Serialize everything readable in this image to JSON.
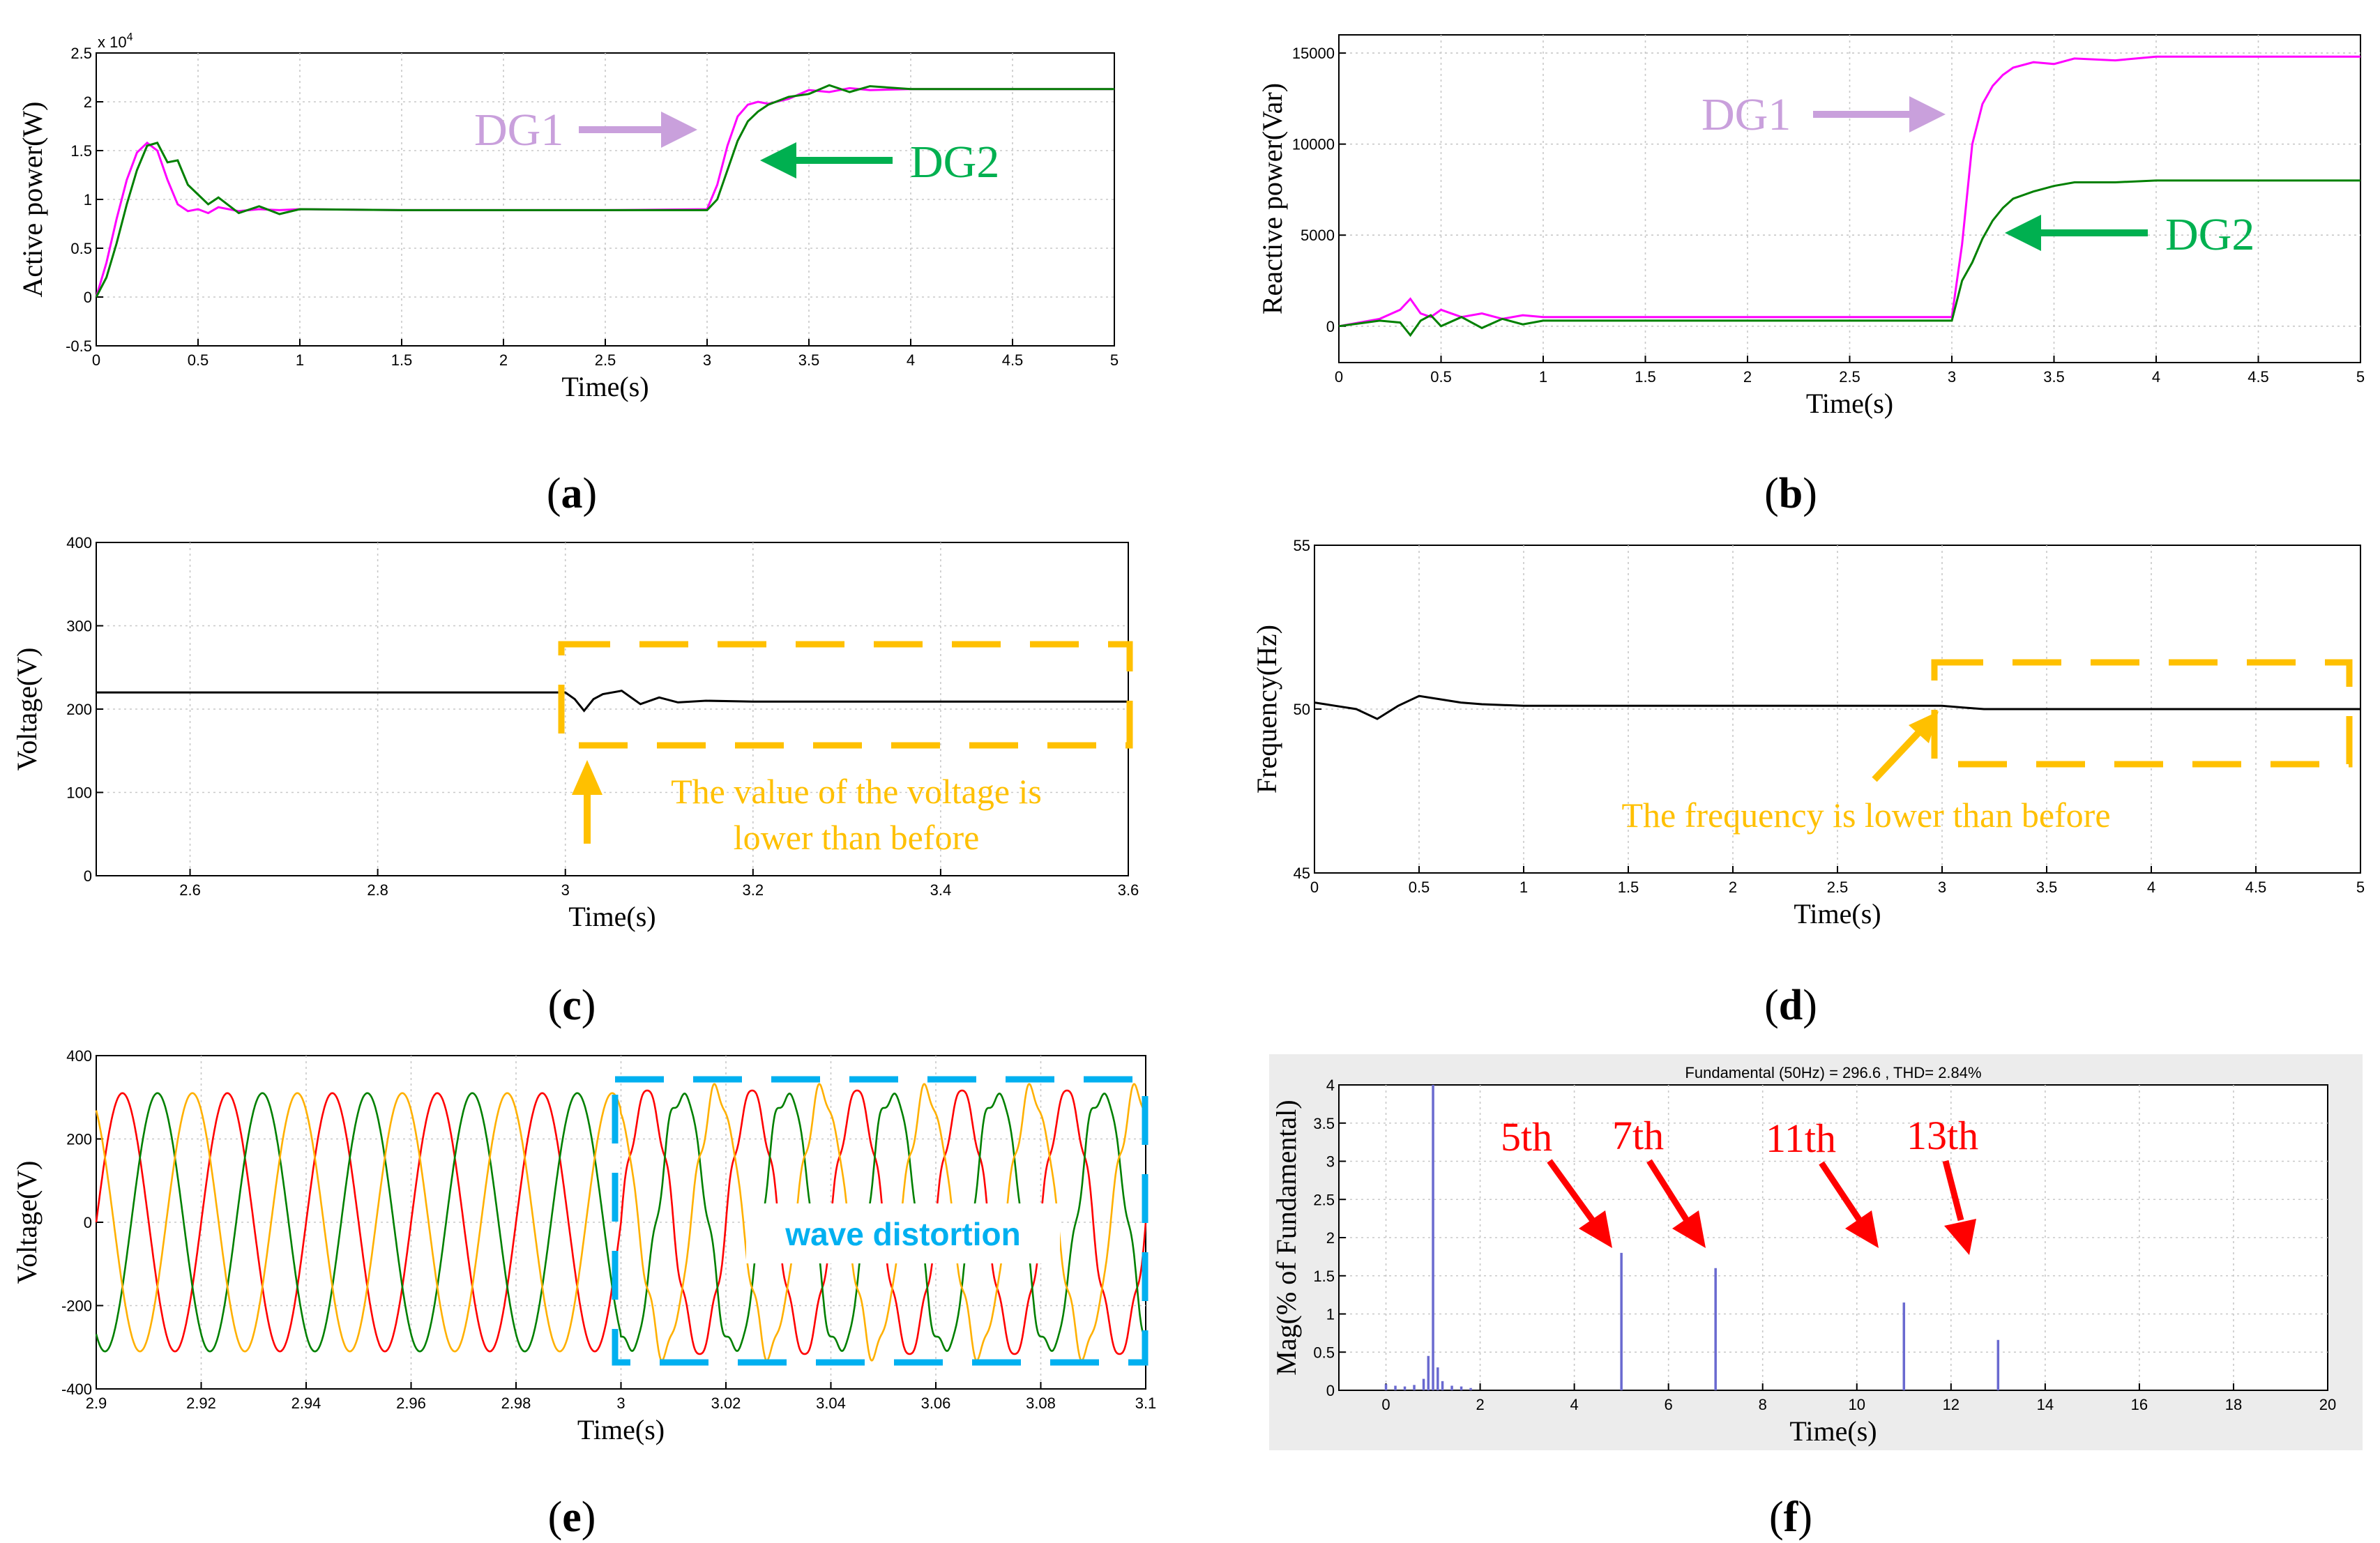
{
  "colors": {
    "dg1": "#ff00ff",
    "dg2": "#008000",
    "dg1_annotation": "#c9a0dc",
    "dg2_annotation": "#00b050",
    "highlight": "#ffc000",
    "distortion": "#00b0f0",
    "harmonic_arrow": "#ff0000",
    "phase_a": "#ff0000",
    "phase_b": "#008000",
    "phase_c": "#ffb000",
    "fft_bar": "#6a6ad0",
    "panel_f_bg": "#ececec"
  },
  "chart_data": [
    {
      "id": "a",
      "type": "line",
      "caption": "a",
      "xlabel": "Time(s)",
      "ylabel": "Active power(W)",
      "exponent_label": "x 10",
      "exponent_power": "4",
      "xlim": [
        0,
        5
      ],
      "ylim": [
        -0.5,
        2.5
      ],
      "xticks": [
        "0",
        "0.5",
        "1",
        "1.5",
        "2",
        "2.5",
        "3",
        "3.5",
        "4",
        "4.5",
        "5"
      ],
      "yticks": [
        "-0.5",
        "0",
        "0.5",
        "1",
        "1.5",
        "2",
        "2.5"
      ],
      "series": [
        {
          "name": "DG1",
          "color": "#ff00ff",
          "x": [
            0,
            0.05,
            0.1,
            0.15,
            0.2,
            0.25,
            0.3,
            0.35,
            0.4,
            0.45,
            0.5,
            0.55,
            0.6,
            0.7,
            0.8,
            0.9,
            1.0,
            1.5,
            2.0,
            2.5,
            3.0,
            3.05,
            3.1,
            3.15,
            3.2,
            3.25,
            3.3,
            3.4,
            3.5,
            3.6,
            3.7,
            3.8,
            4.0,
            4.5,
            5.0
          ],
          "values": [
            0,
            0.35,
            0.8,
            1.2,
            1.48,
            1.58,
            1.5,
            1.2,
            0.95,
            0.88,
            0.9,
            0.86,
            0.92,
            0.88,
            0.9,
            0.89,
            0.9,
            0.89,
            0.89,
            0.89,
            0.9,
            1.15,
            1.55,
            1.85,
            1.97,
            2.0,
            1.98,
            2.03,
            2.12,
            2.1,
            2.14,
            2.12,
            2.13,
            2.13,
            2.13
          ]
        },
        {
          "name": "DG2",
          "color": "#008000",
          "x": [
            0,
            0.05,
            0.1,
            0.15,
            0.2,
            0.25,
            0.3,
            0.35,
            0.4,
            0.45,
            0.5,
            0.55,
            0.6,
            0.7,
            0.8,
            0.9,
            1.0,
            1.5,
            2.0,
            2.5,
            3.0,
            3.05,
            3.1,
            3.15,
            3.2,
            3.25,
            3.3,
            3.4,
            3.5,
            3.6,
            3.7,
            3.8,
            4.0,
            4.5,
            5.0
          ],
          "values": [
            0,
            0.2,
            0.55,
            0.95,
            1.3,
            1.55,
            1.58,
            1.38,
            1.4,
            1.15,
            1.05,
            0.95,
            1.02,
            0.86,
            0.93,
            0.85,
            0.9,
            0.89,
            0.89,
            0.89,
            0.89,
            1.0,
            1.3,
            1.6,
            1.8,
            1.9,
            1.97,
            2.05,
            2.08,
            2.17,
            2.1,
            2.16,
            2.13,
            2.13,
            2.13
          ]
        }
      ],
      "annotations": {
        "dg1": "DG1",
        "dg2": "DG2"
      }
    },
    {
      "id": "b",
      "type": "line",
      "caption": "b",
      "xlabel": "Time(s)",
      "ylabel": "Reactive power(Var)",
      "xlim": [
        0,
        5
      ],
      "ylim": [
        -2000,
        16000
      ],
      "xticks": [
        "0",
        "0.5",
        "1",
        "1.5",
        "2",
        "2.5",
        "3",
        "3.5",
        "4",
        "4.5",
        "5"
      ],
      "yticks": [
        "0",
        "5000",
        "10000",
        "15000"
      ],
      "ytick_values": [
        0,
        5000,
        10000,
        15000
      ],
      "series": [
        {
          "name": "DG1",
          "color": "#ff00ff",
          "x": [
            0,
            0.1,
            0.2,
            0.3,
            0.35,
            0.4,
            0.45,
            0.5,
            0.6,
            0.7,
            0.8,
            0.9,
            1.0,
            1.2,
            1.5,
            2.0,
            2.5,
            3.0,
            3.05,
            3.1,
            3.15,
            3.2,
            3.25,
            3.3,
            3.4,
            3.5,
            3.6,
            3.8,
            4.0,
            4.5,
            5.0
          ],
          "values": [
            0,
            200,
            400,
            900,
            1500,
            700,
            500,
            900,
            500,
            700,
            400,
            600,
            500,
            500,
            500,
            500,
            500,
            500,
            4500,
            10000,
            12200,
            13200,
            13800,
            14200,
            14500,
            14400,
            14700,
            14600,
            14800,
            14800,
            14800
          ]
        },
        {
          "name": "DG2",
          "color": "#008000",
          "x": [
            0,
            0.1,
            0.2,
            0.3,
            0.35,
            0.4,
            0.45,
            0.5,
            0.6,
            0.7,
            0.8,
            0.9,
            1.0,
            1.2,
            1.5,
            2.0,
            2.5,
            3.0,
            3.05,
            3.1,
            3.15,
            3.2,
            3.25,
            3.3,
            3.4,
            3.5,
            3.6,
            3.8,
            4.0,
            4.5,
            5.0
          ],
          "values": [
            0,
            150,
            300,
            200,
            -500,
            300,
            600,
            0,
            500,
            -100,
            400,
            100,
            300,
            300,
            300,
            300,
            300,
            300,
            2500,
            3500,
            4800,
            5800,
            6500,
            7000,
            7400,
            7700,
            7900,
            7900,
            8000,
            8000,
            8000
          ]
        }
      ],
      "annotations": {
        "dg1": "DG1",
        "dg2": "DG2"
      }
    },
    {
      "id": "c",
      "type": "line",
      "caption": "c",
      "xlabel": "Time(s)",
      "ylabel": "Voltage(V)",
      "xlim": [
        2.5,
        3.6
      ],
      "ylim": [
        0,
        400
      ],
      "xticks": [
        "2.6",
        "2.8",
        "3",
        "3.2",
        "3.4",
        "3.6"
      ],
      "xtick_values": [
        2.6,
        2.8,
        3.0,
        3.2,
        3.4,
        3.6
      ],
      "yticks": [
        "0",
        "100",
        "200",
        "300",
        "400"
      ],
      "series": [
        {
          "name": "Voltage",
          "color": "#000000",
          "x": [
            2.5,
            2.7,
            2.9,
            3.0,
            3.01,
            3.02,
            3.03,
            3.04,
            3.06,
            3.08,
            3.1,
            3.12,
            3.15,
            3.2,
            3.3,
            3.4,
            3.5,
            3.6
          ],
          "values": [
            220,
            220,
            220,
            220,
            212,
            198,
            212,
            218,
            222,
            206,
            214,
            208,
            210,
            209,
            209,
            209,
            209,
            209
          ]
        }
      ],
      "annotation_line1": "The value of the voltage is",
      "annotation_line2": "lower than before"
    },
    {
      "id": "d",
      "type": "line",
      "caption": "d",
      "xlabel": "Time(s)",
      "ylabel": "Frequency(Hz)",
      "xlim": [
        0,
        5
      ],
      "ylim": [
        45,
        55
      ],
      "xticks": [
        "0",
        "0.5",
        "1",
        "1.5",
        "2",
        "2.5",
        "3",
        "3.5",
        "4",
        "4.5",
        "5"
      ],
      "yticks": [
        "45",
        "50",
        "55"
      ],
      "series": [
        {
          "name": "Frequency",
          "color": "#000000",
          "x": [
            0,
            0.1,
            0.2,
            0.3,
            0.4,
            0.5,
            0.6,
            0.7,
            0.8,
            1.0,
            1.2,
            1.5,
            2.0,
            2.5,
            3.0,
            3.1,
            3.2,
            3.3,
            3.5,
            4.0,
            4.5,
            5.0
          ],
          "values": [
            50.2,
            50.1,
            50.0,
            49.7,
            50.1,
            50.4,
            50.3,
            50.2,
            50.15,
            50.1,
            50.1,
            50.1,
            50.1,
            50.1,
            50.1,
            50.05,
            50.0,
            50.0,
            50.0,
            50.0,
            50.0,
            50.0
          ]
        }
      ],
      "annotation": "The frequency  is lower than before"
    },
    {
      "id": "e",
      "type": "line",
      "caption": "e",
      "xlabel": "Time(s)",
      "ylabel": "Voltage(V)",
      "xlim": [
        2.9,
        3.1
      ],
      "ylim": [
        -400,
        400
      ],
      "xticks": [
        "2.9",
        "2.92",
        "2.94",
        "2.96",
        "2.98",
        "3",
        "3.02",
        "3.04",
        "3.06",
        "3.08",
        "3.1"
      ],
      "yticks": [
        "-400",
        "-200",
        "0",
        "200",
        "400"
      ],
      "waveform": {
        "amplitude_V": 310,
        "frequency_Hz": 50,
        "phases": [
          "A",
          "B",
          "C"
        ],
        "distortion_start_s": 3.0
      },
      "annotation": "wave distortion"
    },
    {
      "id": "f",
      "type": "bar",
      "caption": "f",
      "title": "Fundamental (50Hz) = 296.6 , THD= 2.84%",
      "xlabel": "Time(s)",
      "ylabel": "Mag(% of Fundamental)",
      "xlim": [
        -1,
        20
      ],
      "ylim": [
        0,
        4
      ],
      "xticks": [
        "0",
        "2",
        "4",
        "6",
        "8",
        "10",
        "12",
        "14",
        "16",
        "18",
        "20"
      ],
      "yticks": [
        "0",
        "0.5",
        "1",
        "1.5",
        "2",
        "2.5",
        "3",
        "3.5",
        "4"
      ],
      "x": [
        0,
        0.2,
        0.4,
        0.6,
        0.8,
        0.9,
        1.0,
        1.1,
        1.2,
        1.4,
        1.6,
        1.8,
        5,
        7,
        11,
        13
      ],
      "values": [
        0.08,
        0.06,
        0.05,
        0.07,
        0.15,
        0.45,
        4.0,
        0.3,
        0.12,
        0.06,
        0.05,
        0.03,
        1.8,
        1.6,
        1.15,
        0.66
      ],
      "annotations": [
        "5th",
        "7th",
        "11th",
        "13th"
      ]
    }
  ]
}
